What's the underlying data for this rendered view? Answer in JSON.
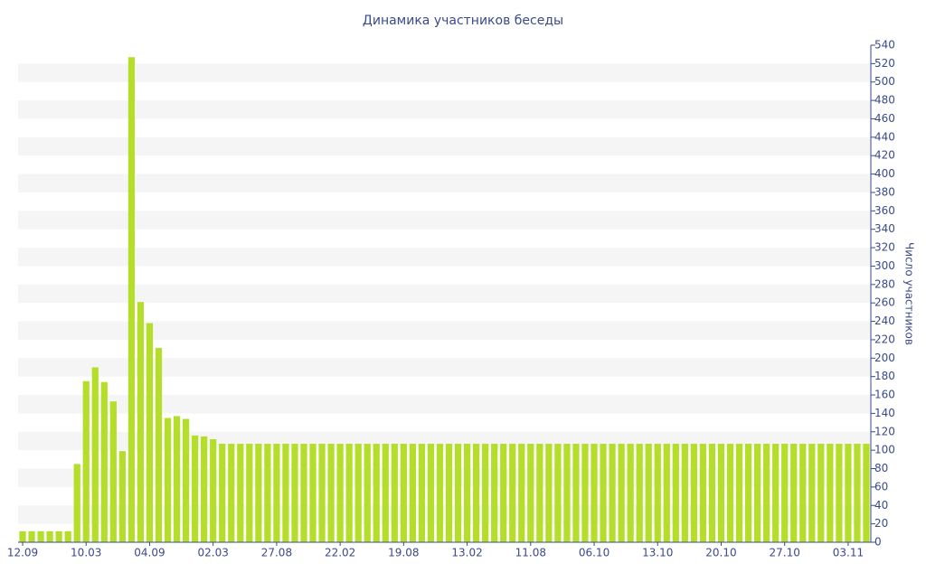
{
  "chart_data": {
    "type": "bar",
    "title": "Динамика участников беседы",
    "y_label": "Число участников",
    "categories": [
      "12.09",
      null,
      null,
      null,
      null,
      null,
      null,
      "10.03",
      null,
      null,
      null,
      null,
      null,
      null,
      "04.09",
      null,
      null,
      null,
      null,
      null,
      null,
      "02.03",
      null,
      null,
      null,
      null,
      null,
      null,
      "27.08",
      null,
      null,
      null,
      null,
      null,
      null,
      "22.02",
      null,
      null,
      null,
      null,
      null,
      null,
      "19.08",
      null,
      null,
      null,
      null,
      null,
      null,
      "13.02",
      null,
      null,
      null,
      null,
      null,
      null,
      "11.08",
      null,
      null,
      null,
      null,
      null,
      null,
      "06.10",
      null,
      null,
      null,
      null,
      null,
      null,
      "13.10",
      null,
      null,
      null,
      null,
      null,
      null,
      "20.10",
      null,
      null,
      null,
      null,
      null,
      null,
      "27.10",
      null,
      null,
      null,
      null,
      null,
      null,
      "03.11",
      null,
      null
    ],
    "values": [
      12,
      12,
      12,
      12,
      12,
      12,
      85,
      175,
      190,
      174,
      153,
      99,
      527,
      261,
      238,
      211,
      135,
      137,
      134,
      116,
      115,
      112,
      107,
      107,
      107,
      107,
      107,
      107,
      107,
      107,
      107,
      107,
      107,
      107,
      107,
      107,
      107,
      107,
      107,
      107,
      107,
      107,
      107,
      107,
      107,
      107,
      107,
      107,
      107,
      107,
      107,
      107,
      107,
      107,
      107,
      107,
      107,
      107,
      107,
      107,
      107,
      107,
      107,
      107,
      107,
      107,
      107,
      107,
      107,
      107,
      107,
      107,
      107,
      107,
      107,
      107,
      107,
      107,
      107,
      107,
      107,
      107,
      107,
      107,
      107,
      107,
      107,
      107,
      107,
      107,
      107,
      107,
      107,
      107
    ],
    "color": "#b5de2b",
    "ylim": [
      0,
      540
    ],
    "yticks": [
      0,
      20,
      40,
      60,
      80,
      100,
      120,
      140,
      160,
      180,
      200,
      220,
      240,
      260,
      280,
      300,
      320,
      340,
      360,
      380,
      400,
      420,
      440,
      460,
      480,
      500,
      520,
      540
    ],
    "grid": true
  }
}
